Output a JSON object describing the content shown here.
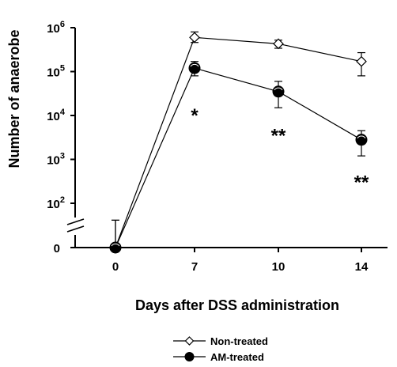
{
  "chart_data": {
    "type": "line",
    "xlabel": "Days after DSS administration",
    "ylabel": "Number of anaerobe",
    "y_scale": "log",
    "y_axis_break": true,
    "categories": [
      "0",
      "7",
      "10",
      "14"
    ],
    "y_ticks": [
      {
        "label": "0",
        "exponent": null
      },
      {
        "label": "10",
        "exponent": "2"
      },
      {
        "label": "10",
        "exponent": "3"
      },
      {
        "label": "10",
        "exponent": "4"
      },
      {
        "label": "10",
        "exponent": "5"
      },
      {
        "label": "10",
        "exponent": "6"
      }
    ],
    "legend_position": "bottom-right",
    "series": [
      {
        "name": "Non-treated",
        "marker": "diamond-open",
        "values": [
          0,
          600000,
          430000,
          170000
        ],
        "errors_upper": [
          20,
          800000,
          520000,
          270000
        ],
        "errors_lower": [
          0,
          460000,
          340000,
          80000
        ]
      },
      {
        "name": "AM-treated",
        "marker": "circle-filled",
        "values": [
          0,
          120000,
          35000,
          2800
        ],
        "errors_upper": [
          20,
          170000,
          60000,
          4500
        ],
        "errors_lower": [
          0,
          80000,
          15000,
          1200
        ]
      }
    ],
    "annotations": [
      {
        "text": "*",
        "x": "7",
        "y": 10000
      },
      {
        "text": "**",
        "x": "10",
        "y": 3500
      },
      {
        "text": "**",
        "x": "14",
        "y": 300
      }
    ]
  }
}
